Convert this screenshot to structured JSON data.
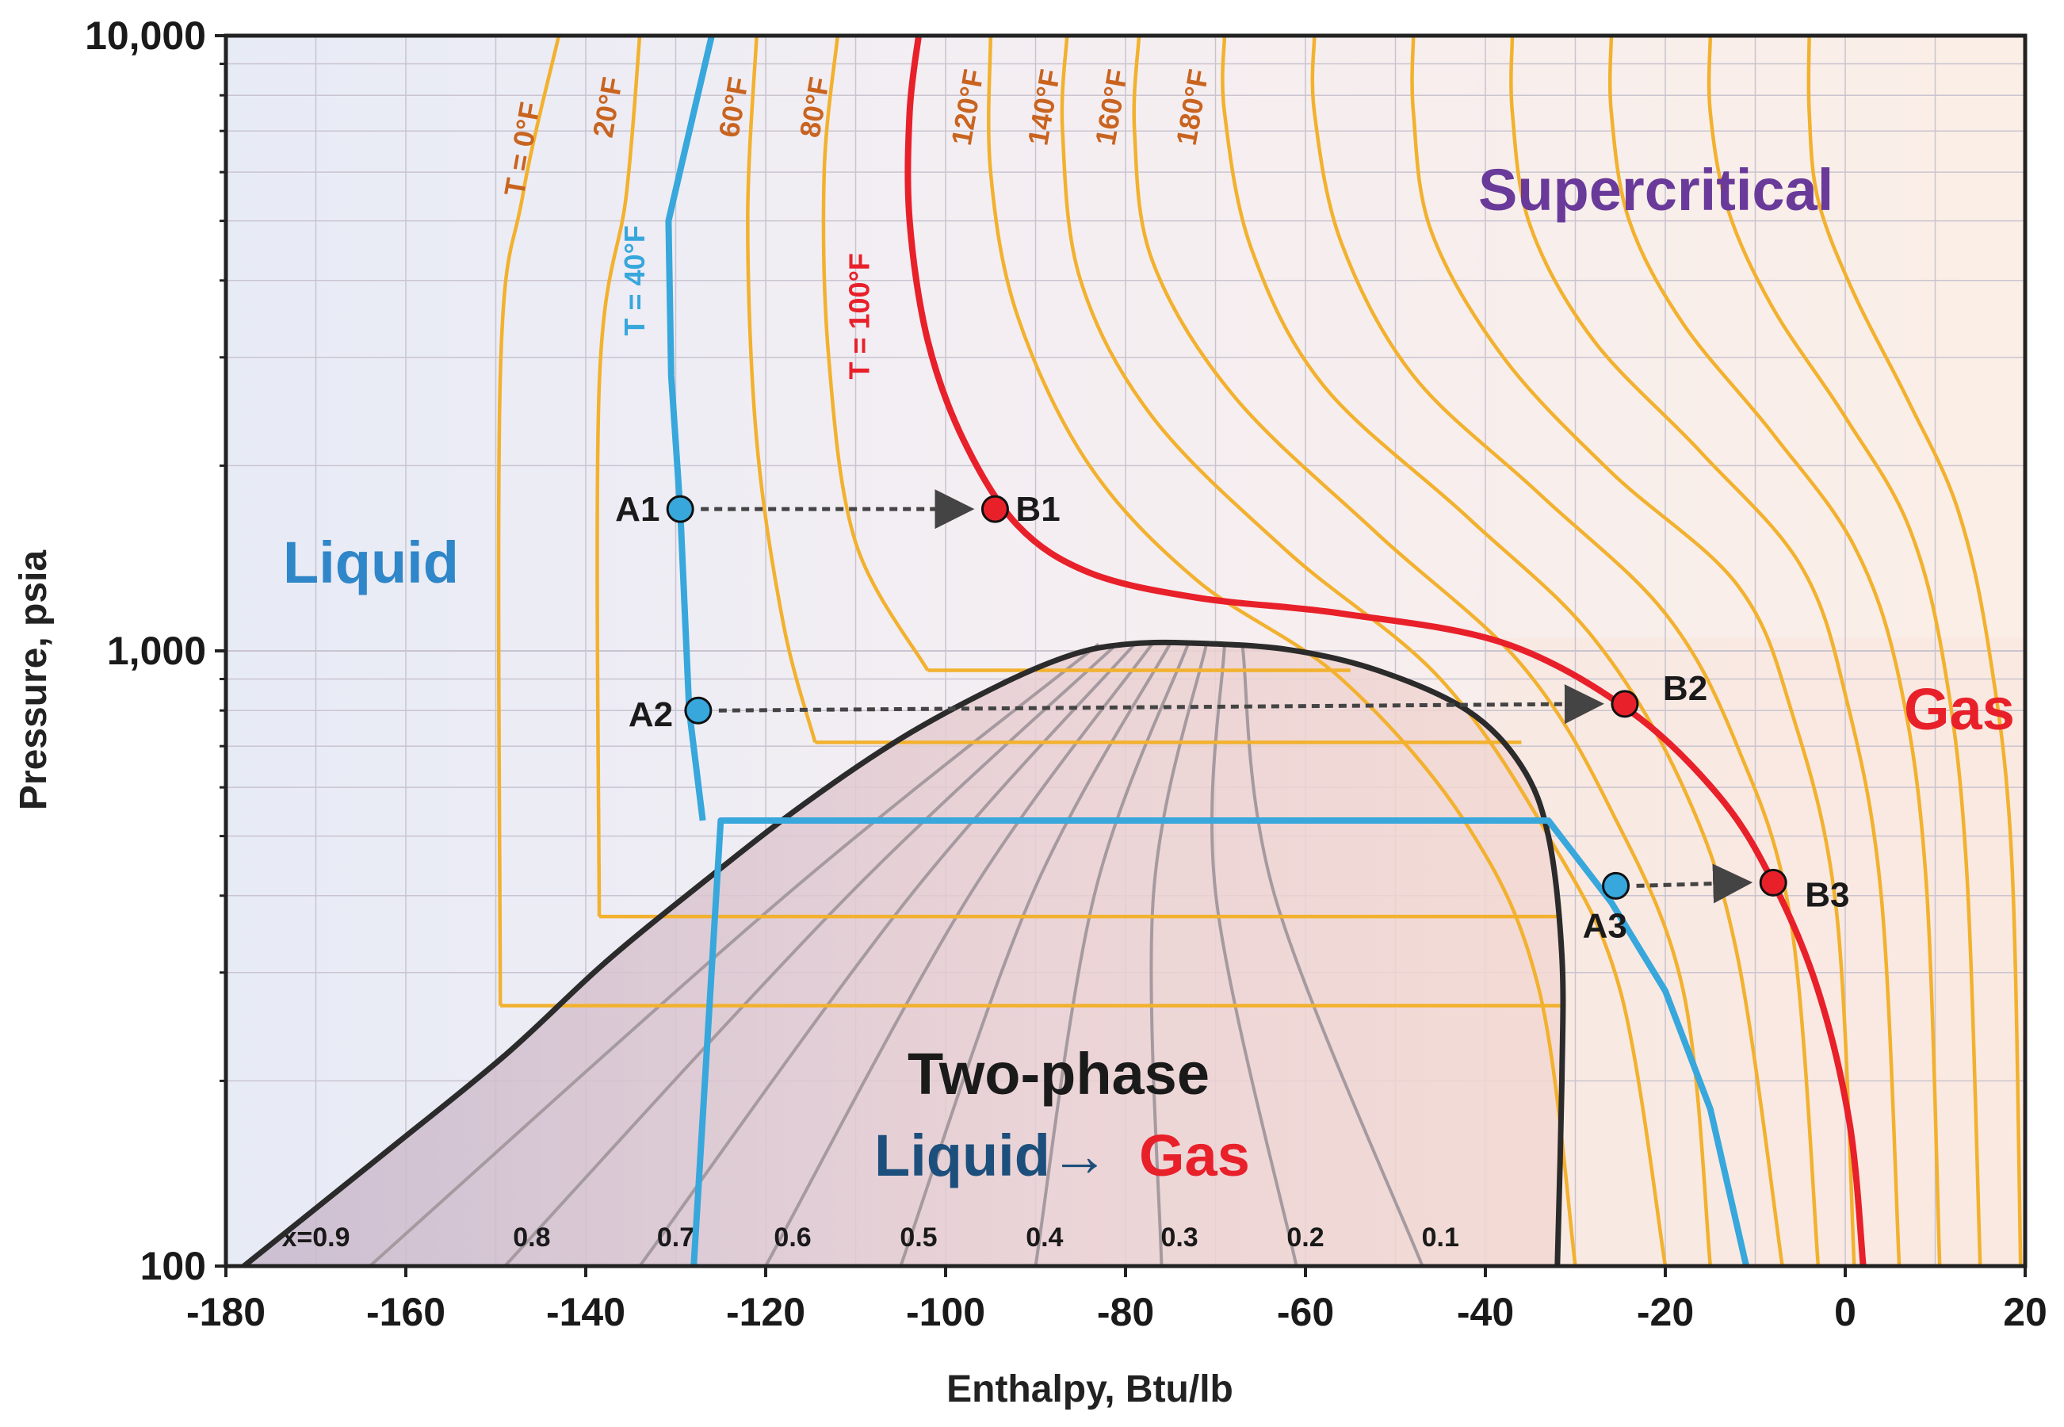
{
  "chart_data": {
    "type": "line",
    "title": "",
    "xlabel": "Enthalpy, Btu/lb",
    "ylabel": "Pressure, psia",
    "xlim": [
      -180,
      20
    ],
    "ylim": [
      100,
      10000
    ],
    "yscale": "log",
    "x_ticks": [
      -180,
      -160,
      -140,
      -120,
      -100,
      -80,
      -60,
      -40,
      -20,
      0,
      20
    ],
    "x_tick_labels": [
      "-180",
      "-160",
      "-140",
      "-120",
      "-100",
      "-80",
      "-60",
      "-40",
      "-20",
      "0",
      "20"
    ],
    "y_ticks": [
      100,
      1000,
      10000
    ],
    "y_tick_labels": [
      "100",
      "1,000",
      "10,000"
    ],
    "grid": true,
    "colors": {
      "isotherm": "#f2b12e",
      "isotherm_40": "#37a7dc",
      "isotherm_100": "#e8202a",
      "dome": "#2b2b2b",
      "quality": "#a59aa0",
      "liquid_text": "#2f86c8",
      "gas_text": "#e8202a",
      "supercritical_text": "#6a3a9a",
      "twophase_text": "#1a1a1a",
      "arrow_liquid_text": "#1d4f7c",
      "isotherm_label": "#c86420"
    },
    "regions": {
      "liquid": "Liquid",
      "gas": "Gas",
      "supercritical": "Supercritical",
      "two_phase": "Two-phase",
      "transition_from": "Liquid",
      "transition_arrow": "→",
      "transition_to": "Gas"
    },
    "saturation_dome": [
      {
        "h": -178,
        "p": 100
      },
      {
        "h": -163,
        "p": 150
      },
      {
        "h": -149,
        "p": 220
      },
      {
        "h": -138,
        "p": 310
      },
      {
        "h": -127,
        "p": 420
      },
      {
        "h": -116,
        "p": 560
      },
      {
        "h": -105,
        "p": 720
      },
      {
        "h": -94,
        "p": 880
      },
      {
        "h": -86,
        "p": 985
      },
      {
        "h": -80,
        "p": 1025
      },
      {
        "h": -73,
        "p": 1030
      },
      {
        "h": -62,
        "p": 1005
      },
      {
        "h": -52,
        "p": 930
      },
      {
        "h": -42,
        "p": 800
      },
      {
        "h": -36,
        "p": 650
      },
      {
        "h": -33,
        "p": 500
      },
      {
        "h": -31.5,
        "p": 320
      },
      {
        "h": -31.5,
        "p": 200
      },
      {
        "h": -32,
        "p": 100
      }
    ],
    "quality_lines": [
      {
        "label": "x=0.9",
        "points": [
          {
            "h": -164,
            "p": 100
          },
          {
            "h": -83,
            "p": 1025
          }
        ]
      },
      {
        "label": "0.8",
        "points": [
          {
            "h": -149,
            "p": 100
          },
          {
            "h": -81,
            "p": 1025
          }
        ]
      },
      {
        "label": "0.7",
        "points": [
          {
            "h": -134,
            "p": 100
          },
          {
            "h": -79,
            "p": 1025
          }
        ]
      },
      {
        "label": "0.6",
        "points": [
          {
            "h": -120,
            "p": 100
          },
          {
            "h": -77,
            "p": 1028
          }
        ]
      },
      {
        "label": "0.5",
        "points": [
          {
            "h": -105,
            "p": 100
          },
          {
            "h": -75,
            "p": 1030
          }
        ]
      },
      {
        "label": "0.4",
        "points": [
          {
            "h": -90,
            "p": 100
          },
          {
            "h": -73,
            "p": 1030
          }
        ]
      },
      {
        "label": "0.3",
        "points": [
          {
            "h": -76,
            "p": 100
          },
          {
            "h": -71,
            "p": 1028
          }
        ]
      },
      {
        "label": "0.2",
        "points": [
          {
            "h": -61,
            "p": 100
          },
          {
            "h": -69,
            "p": 1025
          }
        ]
      },
      {
        "label": "0.1",
        "points": [
          {
            "h": -47,
            "p": 100
          },
          {
            "h": -67,
            "p": 1020
          }
        ]
      }
    ],
    "isotherms": [
      {
        "label": "T = 0°F",
        "T": 0,
        "points": [
          {
            "h": -149.5,
            "p": 265
          },
          {
            "h": -149.5,
            "p": 2800
          },
          {
            "h": -147,
            "p": 5500
          },
          {
            "h": -143,
            "p": 10000
          }
        ]
      },
      {
        "label": "20°F",
        "T": 20,
        "points": [
          {
            "h": -138.5,
            "p": 370
          },
          {
            "h": -138.5,
            "p": 2700
          },
          {
            "h": -135.5,
            "p": 5500
          },
          {
            "h": -134,
            "p": 10000
          }
        ]
      },
      {
        "label": "60°F",
        "T": 60,
        "points": [
          {
            "h": -114.5,
            "p": 710
          },
          {
            "h": -118,
            "p": 1100
          },
          {
            "h": -121,
            "p": 2200
          },
          {
            "h": -122,
            "p": 5000
          },
          {
            "h": -121,
            "p": 10000
          }
        ]
      },
      {
        "label": "80°F",
        "T": 80,
        "points": [
          {
            "h": -102,
            "p": 930
          },
          {
            "h": -110,
            "p": 1500
          },
          {
            "h": -113,
            "p": 3000
          },
          {
            "h": -113.5,
            "p": 6000
          },
          {
            "h": -112,
            "p": 10000
          }
        ]
      },
      {
        "label": "120°F",
        "T": 120,
        "points": [
          {
            "h": -30,
            "p": 100
          },
          {
            "h": -34,
            "p": 280
          },
          {
            "h": -42,
            "p": 520
          },
          {
            "h": -56,
            "p": 900
          },
          {
            "h": -72,
            "p": 1300
          },
          {
            "h": -84,
            "p": 2000
          },
          {
            "h": -92,
            "p": 3500
          },
          {
            "h": -95,
            "p": 6000
          },
          {
            "h": -95,
            "p": 10000
          }
        ]
      },
      {
        "label": "140°F",
        "T": 140,
        "points": [
          {
            "h": -20,
            "p": 100
          },
          {
            "h": -25,
            "p": 280
          },
          {
            "h": -33,
            "p": 500
          },
          {
            "h": -45,
            "p": 900
          },
          {
            "h": -62,
            "p": 1450
          },
          {
            "h": -77,
            "p": 2400
          },
          {
            "h": -85,
            "p": 4000
          },
          {
            "h": -87,
            "p": 7000
          },
          {
            "h": -86.5,
            "p": 10000
          }
        ]
      },
      {
        "label": "160°F",
        "T": 160,
        "points": [
          {
            "h": -15,
            "p": 100
          },
          {
            "h": -18,
            "p": 280
          },
          {
            "h": -26,
            "p": 550
          },
          {
            "h": -36,
            "p": 950
          },
          {
            "h": -52,
            "p": 1550
          },
          {
            "h": -68,
            "p": 2600
          },
          {
            "h": -77,
            "p": 4300
          },
          {
            "h": -79,
            "p": 7000
          },
          {
            "h": -78.5,
            "p": 10000
          }
        ]
      },
      {
        "label": "180°F",
        "T": 180,
        "points": [
          {
            "h": -7,
            "p": 100
          },
          {
            "h": -12,
            "p": 320
          },
          {
            "h": -18,
            "p": 600
          },
          {
            "h": -28,
            "p": 1050
          },
          {
            "h": -42,
            "p": 1650
          },
          {
            "h": -58,
            "p": 2700
          },
          {
            "h": -66,
            "p": 4500
          },
          {
            "h": -69,
            "p": 7500
          },
          {
            "h": -69,
            "p": 10000
          }
        ]
      },
      {
        "label": "",
        "T": 200,
        "points": [
          {
            "h": -3,
            "p": 100
          },
          {
            "h": -6,
            "p": 360
          },
          {
            "h": -12,
            "p": 700
          },
          {
            "h": -20,
            "p": 1150
          },
          {
            "h": -34,
            "p": 1800
          },
          {
            "h": -48,
            "p": 2800
          },
          {
            "h": -56,
            "p": 4600
          },
          {
            "h": -59,
            "p": 7500
          },
          {
            "h": -59,
            "p": 10000
          }
        ]
      },
      {
        "label": "",
        "T": 220,
        "points": [
          {
            "h": 1,
            "p": 100
          },
          {
            "h": -1,
            "p": 380
          },
          {
            "h": -6,
            "p": 800
          },
          {
            "h": -12,
            "p": 1280
          },
          {
            "h": -26,
            "p": 1950
          },
          {
            "h": -38,
            "p": 3000
          },
          {
            "h": -46,
            "p": 4800
          },
          {
            "h": -48,
            "p": 7500
          },
          {
            "h": -48,
            "p": 10000
          }
        ]
      },
      {
        "label": "",
        "T": 240,
        "points": [
          {
            "h": 6,
            "p": 100
          },
          {
            "h": 4,
            "p": 400
          },
          {
            "h": 0,
            "p": 850
          },
          {
            "h": -5,
            "p": 1380
          },
          {
            "h": -16,
            "p": 2100
          },
          {
            "h": -28,
            "p": 3200
          },
          {
            "h": -35,
            "p": 4900
          },
          {
            "h": -37,
            "p": 7500
          },
          {
            "h": -37,
            "p": 10000
          }
        ]
      },
      {
        "label": "",
        "T": 260,
        "points": [
          {
            "h": 10.5,
            "p": 100
          },
          {
            "h": 9,
            "p": 420
          },
          {
            "h": 6,
            "p": 900
          },
          {
            "h": 1,
            "p": 1480
          },
          {
            "h": -8,
            "p": 2250
          },
          {
            "h": -18,
            "p": 3400
          },
          {
            "h": -24,
            "p": 5000
          },
          {
            "h": -26,
            "p": 7500
          },
          {
            "h": -26,
            "p": 10000
          }
        ]
      },
      {
        "label": "",
        "T": 280,
        "points": [
          {
            "h": 15,
            "p": 100
          },
          {
            "h": 13.5,
            "p": 440
          },
          {
            "h": 11,
            "p": 950
          },
          {
            "h": 7,
            "p": 1600
          },
          {
            "h": 0,
            "p": 2400
          },
          {
            "h": -8,
            "p": 3600
          },
          {
            "h": -13,
            "p": 5200
          },
          {
            "h": -15,
            "p": 7500
          },
          {
            "h": -15,
            "p": 10000
          }
        ]
      },
      {
        "label": "",
        "T": 300,
        "points": [
          {
            "h": 19.5,
            "p": 100
          },
          {
            "h": 18.5,
            "p": 460
          },
          {
            "h": 16,
            "p": 1000
          },
          {
            "h": 12.5,
            "p": 1700
          },
          {
            "h": 7,
            "p": 2550
          },
          {
            "h": 1,
            "p": 3800
          },
          {
            "h": -3,
            "p": 5400
          },
          {
            "h": -4,
            "p": 7500
          },
          {
            "h": -4,
            "p": 10000
          }
        ]
      }
    ],
    "isotherm_flat_segments": [
      {
        "T": 0,
        "p": 265,
        "h_from": -149.5,
        "h_to": -31.5
      },
      {
        "T": 20,
        "p": 370,
        "h_from": -138.5,
        "h_to": -31.5
      },
      {
        "T": 60,
        "p": 710,
        "h_from": -114.5,
        "h_to": -36
      },
      {
        "T": 80,
        "p": 930,
        "h_from": -102,
        "h_to": -55
      }
    ],
    "series": [
      {
        "name": "T = 40°F",
        "points": [
          {
            "h": -128,
            "p": 100
          },
          {
            "h": -125,
            "p": 530
          },
          {
            "h": -33,
            "p": 530
          },
          {
            "h": -26,
            "p": 390
          },
          {
            "h": -20,
            "p": 280
          },
          {
            "h": -15,
            "p": 180
          },
          {
            "h": -11,
            "p": 100
          }
        ]
      },
      {
        "name": "T = 40°F (liquid)",
        "points": [
          {
            "h": -127,
            "p": 530
          },
          {
            "h": -128.5,
            "p": 800
          },
          {
            "h": -129.5,
            "p": 1700
          },
          {
            "h": -130.5,
            "p": 2800
          },
          {
            "h": -130.8,
            "p": 5000
          },
          {
            "h": -128,
            "p": 7500
          },
          {
            "h": -126,
            "p": 10000
          }
        ]
      },
      {
        "name": "T = 100°F",
        "points": [
          {
            "h": 2,
            "p": 100
          },
          {
            "h": 0.5,
            "p": 170
          },
          {
            "h": -3,
            "p": 280
          },
          {
            "h": -8,
            "p": 420
          },
          {
            "h": -14,
            "p": 580
          },
          {
            "h": -24,
            "p": 800
          },
          {
            "h": -38,
            "p": 1030
          },
          {
            "h": -56,
            "p": 1150
          },
          {
            "h": -72,
            "p": 1220
          },
          {
            "h": -84,
            "p": 1340
          },
          {
            "h": -92,
            "p": 1600
          },
          {
            "h": -98,
            "p": 2200
          },
          {
            "h": -102,
            "p": 3200
          },
          {
            "h": -104,
            "p": 5000
          },
          {
            "h": -104,
            "p": 7500
          },
          {
            "h": -103,
            "p": 10000
          }
        ]
      }
    ],
    "points": [
      {
        "name": "A1",
        "h": -129.5,
        "p": 1700,
        "color": "#37a7dc"
      },
      {
        "name": "B1",
        "h": -94.5,
        "p": 1700,
        "color": "#e8202a"
      },
      {
        "name": "A2",
        "h": -127.5,
        "p": 800,
        "color": "#37a7dc"
      },
      {
        "name": "B2",
        "h": -24.5,
        "p": 820,
        "color": "#e8202a"
      },
      {
        "name": "A3",
        "h": -25.5,
        "p": 415,
        "color": "#37a7dc"
      },
      {
        "name": "B3",
        "h": -8,
        "p": 420,
        "color": "#e8202a"
      }
    ],
    "arrows": [
      {
        "from": "A1",
        "to": "B1"
      },
      {
        "from": "A2",
        "to": "B2"
      },
      {
        "from": "A3",
        "to": "B3"
      }
    ]
  }
}
